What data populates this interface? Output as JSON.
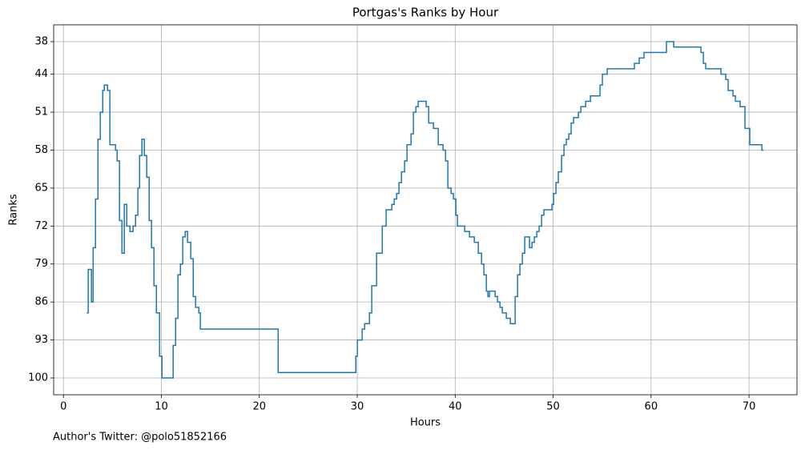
{
  "chart_data": {
    "type": "line",
    "step": "post",
    "title": "Portgas's Ranks by Hour",
    "xlabel": "Hours",
    "ylabel": "Ranks",
    "footnote": "Author's Twitter: @polo51852166",
    "x": [
      2.37,
      2.53,
      2.86,
      3.03,
      3.27,
      3.52,
      3.76,
      4.01,
      4.17,
      4.5,
      4.74,
      5.32,
      5.48,
      5.72,
      5.97,
      6.21,
      6.46,
      6.79,
      7.11,
      7.36,
      7.6,
      7.77,
      8.01,
      8.26,
      8.5,
      8.75,
      8.99,
      9.24,
      9.49,
      9.81,
      10.06,
      11.2,
      11.45,
      11.69,
      11.94,
      12.18,
      12.43,
      12.67,
      13.0,
      13.25,
      13.49,
      13.82,
      13.98,
      21.92,
      29.85,
      30.01,
      30.5,
      30.75,
      31.24,
      31.48,
      31.97,
      32.55,
      32.95,
      33.53,
      33.77,
      34.02,
      34.26,
      34.51,
      34.83,
      35.08,
      35.49,
      35.73,
      35.98,
      36.22,
      37.04,
      37.29,
      37.78,
      38.27,
      38.76,
      39.01,
      39.25,
      39.58,
      39.82,
      40.07,
      40.23,
      40.97,
      41.46,
      41.95,
      42.36,
      42.69,
      42.93,
      43.18,
      43.34,
      43.5,
      44.08,
      44.32,
      44.57,
      44.81,
      45.22,
      45.63,
      46.12,
      46.37,
      46.61,
      46.86,
      47.1,
      47.59,
      47.84,
      48.08,
      48.33,
      48.57,
      48.82,
      49.06,
      49.88,
      50.04,
      50.29,
      50.53,
      50.86,
      51.11,
      51.35,
      51.6,
      51.84,
      52.09,
      52.58,
      52.83,
      53.32,
      53.81,
      54.79,
      55.03,
      55.52,
      58.3,
      58.79,
      59.28,
      61.57,
      62.31,
      65.09,
      65.34,
      65.58,
      67.14,
      67.63,
      67.87,
      68.36,
      68.61,
      69.1,
      69.59,
      70.08,
      71.31,
      71.47
    ],
    "series": [
      {
        "name": "Portgas",
        "color": "#1f77b4",
        "values": [
          88,
          80,
          86,
          76,
          67,
          56,
          51,
          47,
          46,
          47,
          57,
          58,
          60,
          71,
          77,
          68,
          72,
          73,
          72,
          70,
          65,
          59,
          56,
          59,
          63,
          71,
          76,
          83,
          88,
          96,
          100,
          94,
          89,
          81,
          79,
          74,
          73,
          75,
          78,
          85,
          87,
          88,
          91,
          99,
          96,
          93,
          91,
          90,
          88,
          83,
          77,
          72,
          69,
          68,
          67,
          66,
          64,
          62,
          60,
          57,
          55,
          51,
          50,
          49,
          50,
          53,
          54,
          57,
          58,
          60,
          65,
          66,
          67,
          70,
          72,
          73,
          74,
          75,
          77,
          79,
          81,
          84,
          85,
          84,
          85,
          86,
          87,
          88,
          89,
          90,
          85,
          81,
          79,
          77,
          74,
          76,
          75,
          74,
          73,
          72,
          70,
          69,
          68,
          66,
          64,
          62,
          59,
          57,
          56,
          55,
          53,
          52,
          51,
          50,
          49,
          48,
          46,
          44,
          43,
          42,
          41,
          40,
          38,
          39,
          40,
          42,
          43,
          44,
          45,
          47,
          48,
          49,
          50,
          54,
          57,
          58,
          58
        ]
      }
    ],
    "xlim": [
      -1,
      74.9
    ],
    "ylim": [
      103.1,
      34.9
    ],
    "xticks": [
      0,
      10,
      20,
      30,
      40,
      50,
      60,
      70
    ],
    "yticks": [
      38,
      44,
      51,
      58,
      65,
      72,
      79,
      86,
      93,
      100
    ],
    "grid": true
  }
}
